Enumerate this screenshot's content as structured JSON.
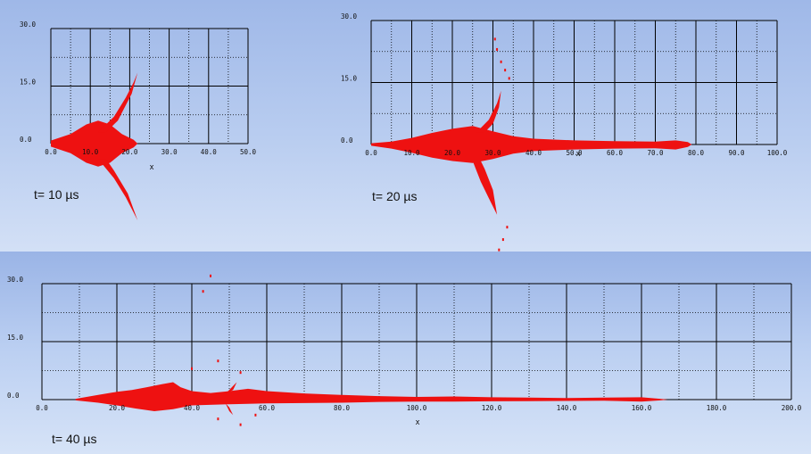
{
  "colors": {
    "plume": "#ee1111",
    "grid": "#000000"
  },
  "chart_data": [
    {
      "type": "area",
      "caption": "t= 10 µs",
      "xlabel": "x",
      "xlim": [
        0,
        50
      ],
      "ylim": [
        0,
        30
      ],
      "x_ticks": [
        "0.0",
        "10.0",
        "20.0",
        "30.0",
        "40.0",
        "50.0"
      ],
      "y_ticks": [
        "0.0",
        "15.0",
        "30.0"
      ],
      "x_major": 10,
      "x_minor": 5,
      "y_major": 15,
      "y_minor": 7.5,
      "plume": {
        "outline": [
          [
            0,
            -0.8
          ],
          [
            5,
            -2.5
          ],
          [
            9,
            -5
          ],
          [
            12,
            -6
          ],
          [
            15,
            -5
          ],
          [
            18,
            -2.5
          ],
          [
            21,
            -1
          ],
          [
            22,
            0
          ],
          [
            21,
            1
          ],
          [
            18,
            2.5
          ],
          [
            15,
            5
          ],
          [
            12,
            6
          ],
          [
            9,
            5
          ],
          [
            5,
            2.5
          ],
          [
            0,
            0.8
          ]
        ],
        "branches": [
          [
            [
              12,
              3
            ],
            [
              16,
              7
            ],
            [
              19,
              12
            ],
            [
              21,
              16
            ],
            [
              22,
              18.5
            ],
            [
              20.5,
              13
            ],
            [
              17,
              6
            ],
            [
              14,
              3
            ]
          ],
          [
            [
              12,
              -4
            ],
            [
              16,
              -9
            ],
            [
              19,
              -14
            ],
            [
              21,
              -18
            ],
            [
              22,
              -20
            ],
            [
              19.5,
              -13
            ],
            [
              16,
              -7
            ],
            [
              14,
              -4
            ]
          ]
        ],
        "specks": []
      }
    },
    {
      "type": "area",
      "caption": "t= 20 µs",
      "xlabel": "x",
      "xlim": [
        0,
        100
      ],
      "ylim": [
        0,
        30
      ],
      "x_ticks": [
        "0.0",
        "10.0",
        "20.0",
        "30.0",
        "40.0",
        "50.0",
        "60.0",
        "70.0",
        "80.0",
        "90.0",
        "100.0"
      ],
      "y_ticks": [
        "0.0",
        "15.0",
        "30.0"
      ],
      "x_major": 10,
      "x_minor": 5,
      "y_major": 15,
      "y_minor": 7.5,
      "plume": {
        "outline": [
          [
            0,
            -0.3
          ],
          [
            5,
            -1
          ],
          [
            10,
            -2
          ],
          [
            15,
            -3.2
          ],
          [
            20,
            -4
          ],
          [
            25,
            -4.5
          ],
          [
            30,
            -3.5
          ],
          [
            35,
            -2.2
          ],
          [
            40,
            -1.6
          ],
          [
            50,
            -1.2
          ],
          [
            60,
            -1
          ],
          [
            70,
            -0.9
          ],
          [
            75,
            -1.2
          ],
          [
            78,
            -0.6
          ],
          [
            79,
            0
          ],
          [
            78,
            0.6
          ],
          [
            75,
            1
          ],
          [
            70,
            0.7
          ],
          [
            60,
            0.8
          ],
          [
            50,
            1
          ],
          [
            40,
            1.4
          ],
          [
            35,
            2
          ],
          [
            30,
            3.2
          ],
          [
            25,
            4.5
          ],
          [
            20,
            3.8
          ],
          [
            15,
            2.8
          ],
          [
            10,
            1.6
          ],
          [
            5,
            0.7
          ],
          [
            0,
            0.3
          ]
        ],
        "branches": [
          [
            [
              26,
              3
            ],
            [
              29,
              6
            ],
            [
              31,
              10
            ],
            [
              32,
              13
            ],
            [
              31.5,
              9
            ],
            [
              30,
              5
            ],
            [
              28,
              3
            ]
          ],
          [
            [
              25,
              -4
            ],
            [
              27,
              -9
            ],
            [
              29,
              -13
            ],
            [
              31,
              -17
            ],
            [
              30,
              -11
            ],
            [
              28,
              -6
            ],
            [
              27,
              -4
            ]
          ]
        ],
        "specks": [
          [
            30.5,
            25.5
          ],
          [
            31,
            23
          ],
          [
            32,
            20
          ],
          [
            33,
            18
          ],
          [
            34,
            16
          ],
          [
            33.5,
            -20
          ],
          [
            32.5,
            -23
          ],
          [
            31.5,
            -25.5
          ]
        ]
      }
    },
    {
      "type": "area",
      "caption": "t= 40 µs",
      "xlabel": "x",
      "xlim": [
        0,
        200
      ],
      "ylim": [
        0,
        30
      ],
      "x_ticks": [
        "0.0",
        "20.0",
        "40.0",
        "60.0",
        "80.0",
        "100.0",
        "120.0",
        "140.0",
        "160.0",
        "180.0",
        "200.0"
      ],
      "y_ticks": [
        "0.0",
        "15.0",
        "30.0"
      ],
      "x_major": 20,
      "x_minor": 10,
      "y_major": 15,
      "y_minor": 7.5,
      "plume": {
        "outline": [
          [
            9,
            -0.2
          ],
          [
            15,
            -0.8
          ],
          [
            20,
            -1.5
          ],
          [
            25,
            -2.3
          ],
          [
            30,
            -3
          ],
          [
            35,
            -2.5
          ],
          [
            40,
            -1.5
          ],
          [
            50,
            -1.2
          ],
          [
            60,
            -1
          ],
          [
            70,
            -0.9
          ],
          [
            80,
            -0.8
          ],
          [
            90,
            -0.6
          ],
          [
            100,
            -0.5
          ],
          [
            110,
            -0.5
          ],
          [
            120,
            -0.45
          ],
          [
            130,
            -0.4
          ],
          [
            140,
            -0.35
          ],
          [
            150,
            -0.3
          ],
          [
            160,
            -0.5
          ],
          [
            165,
            -0.2
          ],
          [
            167,
            0
          ],
          [
            165,
            0.2
          ],
          [
            160,
            0.6
          ],
          [
            150,
            0.5
          ],
          [
            140,
            0.4
          ],
          [
            130,
            0.5
          ],
          [
            120,
            0.6
          ],
          [
            110,
            0.8
          ],
          [
            100,
            0.7
          ],
          [
            90,
            0.9
          ],
          [
            80,
            1.2
          ],
          [
            70,
            1.6
          ],
          [
            60,
            2.2
          ],
          [
            55,
            2.8
          ],
          [
            50,
            2.2
          ],
          [
            45,
            1.7
          ],
          [
            40,
            2.2
          ],
          [
            37,
            3.2
          ],
          [
            35,
            4.5
          ],
          [
            32,
            4
          ],
          [
            28,
            3.2
          ],
          [
            24,
            2.5
          ],
          [
            20,
            2
          ],
          [
            15,
            1.2
          ],
          [
            9,
            0.2
          ]
        ],
        "branches": [
          [
            [
              49,
              1.5
            ],
            [
              51,
              3.5
            ],
            [
              52,
              4.5
            ],
            [
              51,
              2.5
            ]
          ],
          [
            [
              49,
              -1
            ],
            [
              50,
              -3
            ],
            [
              51,
              -4
            ],
            [
              50,
              -2
            ]
          ]
        ],
        "specks": [
          [
            40,
            8
          ],
          [
            47,
            10
          ],
          [
            43,
            28
          ],
          [
            45,
            32
          ],
          [
            47,
            -5
          ],
          [
            53,
            7
          ],
          [
            53,
            -6.5
          ],
          [
            57,
            -4
          ]
        ]
      }
    }
  ]
}
